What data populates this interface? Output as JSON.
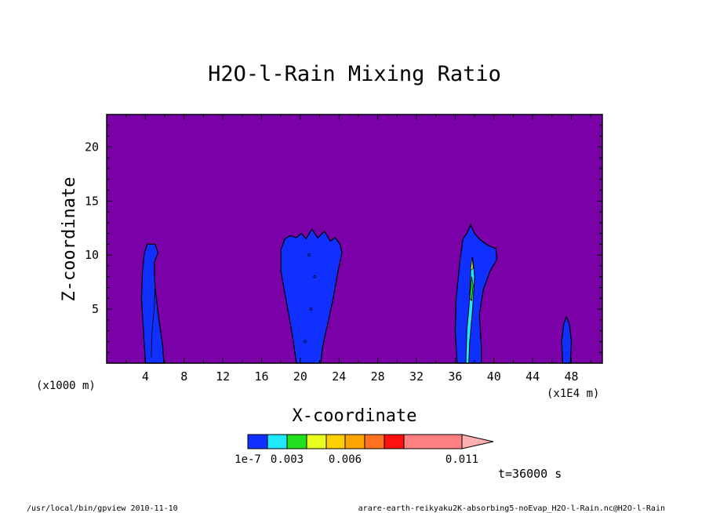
{
  "chart_data": {
    "type": "heatmap",
    "title": "H2O-l-Rain Mixing Ratio",
    "xlabel": "X-coordinate",
    "ylabel": "Z-coordinate",
    "x_unit_left": "(x1000 m)",
    "x_unit_right": "(x1E4 m)",
    "time_label": "t=36000 s",
    "xlim": [
      0,
      51.2
    ],
    "ylim": [
      0,
      23
    ],
    "x_ticks": [
      "4",
      "8",
      "12",
      "16",
      "20",
      "24",
      "28",
      "32",
      "36",
      "40",
      "44",
      "48"
    ],
    "y_ticks": [
      "5",
      "10",
      "15",
      "20"
    ],
    "background_color": "#7a00a8",
    "colorbar": {
      "colors": [
        "#1030ff",
        "#20e8ff",
        "#20e020",
        "#e8ff20",
        "#ffd000",
        "#ffa500",
        "#ff7020",
        "#ff1010",
        "#ff8080",
        "#ffb0b0"
      ],
      "labels": [
        "1e-7",
        "0.003",
        "0.006",
        "0.011"
      ]
    },
    "features": [
      {
        "name": "column-x5",
        "x_center": 4.8,
        "top": 11,
        "level": "1e-7"
      },
      {
        "name": "column-x21",
        "x_center": 21.2,
        "top": 12.5,
        "level": "1e-7"
      },
      {
        "name": "column-x38",
        "x_center": 37.8,
        "top": 12.8,
        "level": "0.003"
      },
      {
        "name": "column-x48",
        "x_center": 47.5,
        "top": 4.3,
        "level": "1e-7"
      }
    ],
    "footer_left": "/usr/local/bin/gpview  2010-11-10",
    "footer_right": "arare-earth-reikyaku2K-absorbing5-noEvap_H2O-l-Rain.nc@H2O-l-Rain"
  }
}
